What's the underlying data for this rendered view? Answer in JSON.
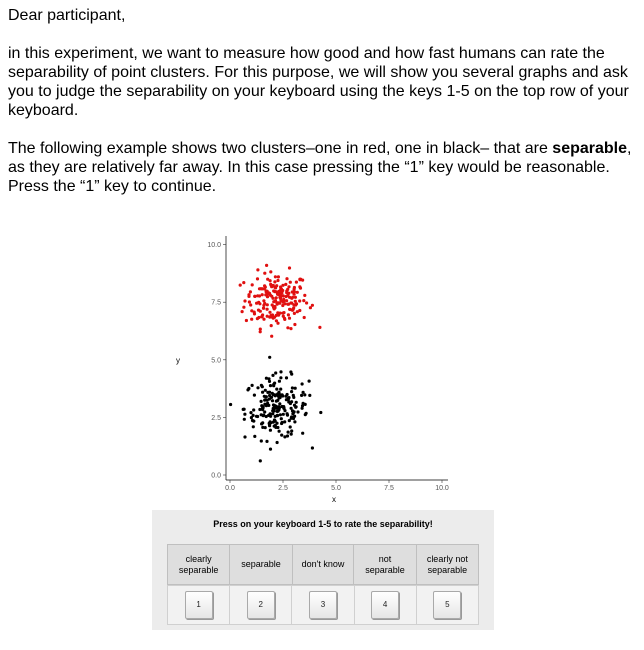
{
  "intro": {
    "greeting": "Dear participant,",
    "paragraph1": "in this experiment, we want to measure how good and how fast humans can rate the separability of point clusters. For this purpose, we will show you several graphs and ask you to judge the separability on your keyboard using the keys 1-5 on the top row of your keyboard.",
    "p2_before": "The following example shows two clusters–one in red, one in black– that are ",
    "p2_bold": "separable",
    "p2_after": ", as they are relatively far away. In this case pressing the “1” key would be reasonable. Press the “1” key to continue."
  },
  "rating": {
    "prompt": "Press on your keyboard 1-5 to rate the separability!",
    "options": [
      {
        "line1": "clearly",
        "line2": "separable",
        "key": "1"
      },
      {
        "line1": "separable",
        "line2": "",
        "key": "2"
      },
      {
        "line1": "don't know",
        "line2": "",
        "key": "3"
      },
      {
        "line1": "not",
        "line2": "separable",
        "key": "4"
      },
      {
        "line1": "clearly not",
        "line2": "separable",
        "key": "5"
      }
    ]
  },
  "chart_data": {
    "type": "scatter",
    "xlabel": "x",
    "ylabel": "y",
    "xlim": [
      0,
      10
    ],
    "ylim": [
      0,
      10.2
    ],
    "xticks": [
      "0.0",
      "2.5",
      "5.0",
      "7.5",
      "10.0"
    ],
    "yticks": [
      "0.0",
      "2.5",
      "5.0",
      "7.5",
      "10.0"
    ],
    "grid": false,
    "series": [
      {
        "color": "#e01010",
        "center": [
          2.2,
          7.6
        ],
        "spread": [
          1.0,
          0.8
        ],
        "count": 200
      },
      {
        "color": "#000000",
        "center": [
          2.2,
          2.9
        ],
        "spread": [
          1.0,
          0.9
        ],
        "count": 200
      }
    ]
  }
}
